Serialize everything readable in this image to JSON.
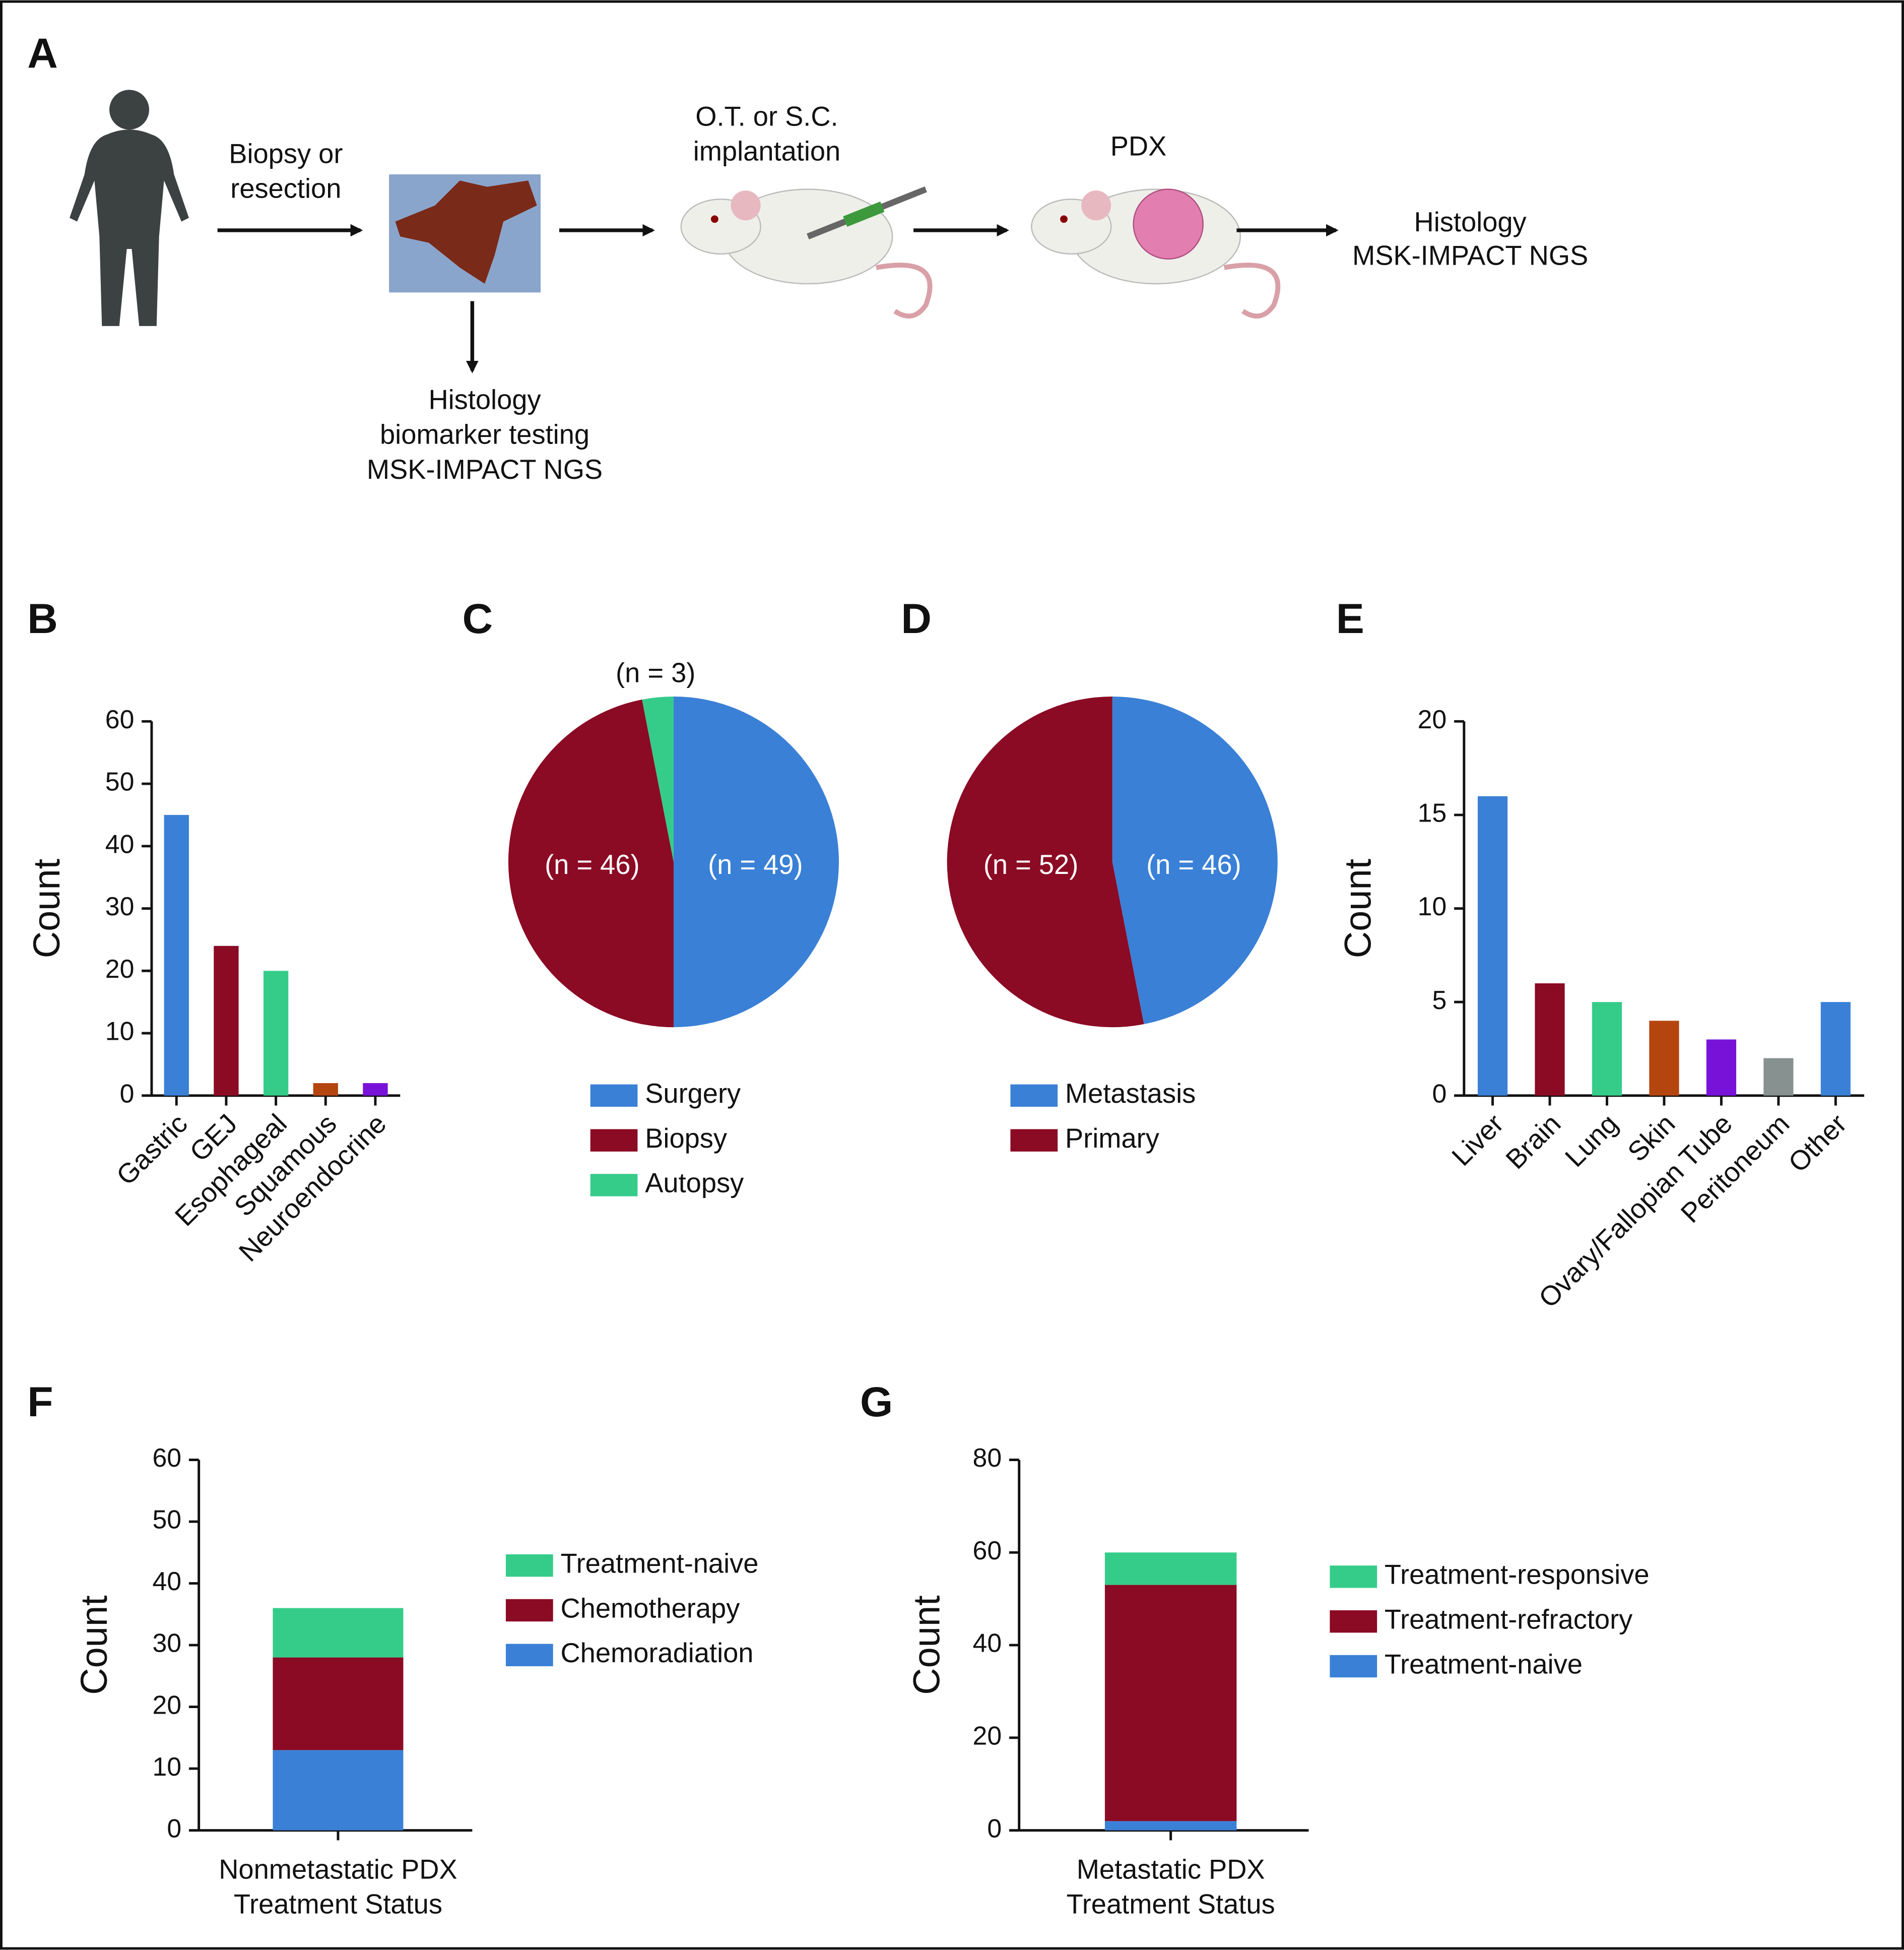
{
  "diagram": {
    "label": "A",
    "steps": [
      {
        "lines": [
          "Biopsy or",
          "resection"
        ]
      },
      {
        "lines": [
          "O.T. or S.C.",
          "implantation"
        ]
      },
      {
        "lines": [
          "PDX"
        ]
      },
      {
        "lines": [
          "Histology",
          "MSK-IMPACT NGS"
        ]
      },
      {
        "lines": [
          "Histology",
          "biomarker testing",
          "MSK-IMPACT NGS"
        ]
      }
    ]
  },
  "chart_data": [
    {
      "type": "bar",
      "label": "B",
      "ylabel": "Count",
      "categories": [
        "Gastric",
        "GEJ",
        "Esophageal",
        "Squamous",
        "Neuroendocrine"
      ],
      "values": [
        45,
        24,
        20,
        2,
        2
      ],
      "colors": [
        "#3a80d6",
        "#8b0a24",
        "#35cc8a",
        "#b5450f",
        "#7812d8"
      ],
      "ylim": [
        0,
        60
      ],
      "yticks": [
        0,
        10,
        20,
        30,
        40,
        50,
        60
      ]
    },
    {
      "type": "pie",
      "label": "C",
      "categories": [
        "Surgery",
        "Biopsy",
        "Autopsy"
      ],
      "values": [
        49,
        46,
        3
      ],
      "value_labels": [
        "(n = 49)",
        "(n = 46)",
        "(n = 3)"
      ],
      "colors": [
        "#3a80d6",
        "#8b0a24",
        "#35cc8a"
      ]
    },
    {
      "type": "pie",
      "label": "D",
      "categories": [
        "Metastasis",
        "Primary"
      ],
      "values": [
        46,
        52
      ],
      "value_labels": [
        "(n = 46)",
        "(n = 52)"
      ],
      "colors": [
        "#3a80d6",
        "#8b0a24"
      ]
    },
    {
      "type": "bar",
      "label": "E",
      "ylabel": "Count",
      "categories": [
        "Liver",
        "Brain",
        "Lung",
        "Skin",
        "Ovary/Fallopian Tube",
        "Peritoneum",
        "Other"
      ],
      "values": [
        16,
        6,
        5,
        4,
        3,
        2,
        5
      ],
      "colors": [
        "#3a80d6",
        "#8b0a24",
        "#35cc8a",
        "#b5450f",
        "#7812d8",
        "#879290",
        "#3a80d6"
      ],
      "ylim": [
        0,
        20
      ],
      "yticks": [
        0,
        5,
        10,
        15,
        20
      ]
    },
    {
      "type": "bar",
      "stacked": true,
      "label": "F",
      "ylabel": "Count",
      "categories": [
        "Nonmetastatic PDX"
      ],
      "xlabel": "Treatment Status",
      "series": [
        {
          "name": "Chemoradiation",
          "color": "#3a80d6",
          "values": [
            13
          ]
        },
        {
          "name": "Chemotherapy",
          "color": "#8b0a24",
          "values": [
            15
          ]
        },
        {
          "name": "Treatment-naive",
          "color": "#35cc8a",
          "values": [
            8
          ]
        }
      ],
      "ylim": [
        0,
        60
      ],
      "yticks": [
        0,
        10,
        20,
        30,
        40,
        50,
        60
      ]
    },
    {
      "type": "bar",
      "stacked": true,
      "label": "G",
      "ylabel": "Count",
      "categories": [
        "Metastatic PDX"
      ],
      "xlabel": "Treatment Status",
      "series": [
        {
          "name": "Treatment-naive",
          "color": "#3a80d6",
          "values": [
            2
          ]
        },
        {
          "name": "Treatment-refractory",
          "color": "#8b0a24",
          "values": [
            51
          ]
        },
        {
          "name": "Treatment-responsive",
          "color": "#35cc8a",
          "values": [
            7
          ]
        }
      ],
      "ylim": [
        0,
        80
      ],
      "yticks": [
        0,
        20,
        40,
        60,
        80
      ]
    }
  ]
}
